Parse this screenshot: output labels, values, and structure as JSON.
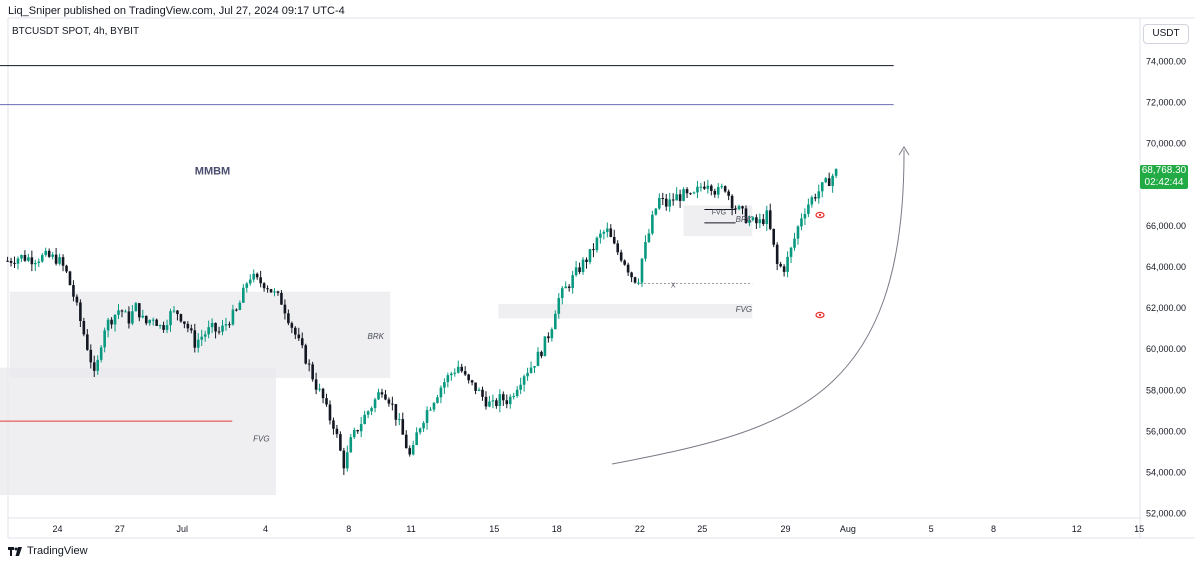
{
  "header": {
    "published_text": "Liq_Sniper published on TradingView.com, Jul 27, 2024 09:17 UTC-4",
    "symbol_text": "BTCUSDT SPOT, 4h, BYBIT",
    "currency_button": "USDT",
    "footer_brand": "TradingView"
  },
  "colors": {
    "up": "#089981",
    "down": "#131722",
    "zone": "#e9eaee",
    "last_price": "#22ab45",
    "red_line": "#e53935",
    "purple_line": "#6b6bb5",
    "black_line": "#131722"
  },
  "last_price": {
    "value": "68,768.30",
    "countdown": "02:42:44"
  },
  "chart_data": {
    "type": "candlestick",
    "title": "BTCUSDT SPOT, 4h, BYBIT",
    "ylim": [
      52000,
      75500
    ],
    "y_ticks": [
      "52,000.00",
      "54,000.00",
      "56,000.00",
      "58,000.00",
      "60,000.00",
      "62,000.00",
      "64,000.00",
      "66,000.00",
      "68,000.00",
      "70,000.00",
      "72,000.00",
      "74,000.00"
    ],
    "x_ticks": [
      {
        "label": "24",
        "day": 24
      },
      {
        "label": "27",
        "day": 27
      },
      {
        "label": "Jul",
        "day": 30
      },
      {
        "label": "4",
        "day": 34
      },
      {
        "label": "8",
        "day": 38
      },
      {
        "label": "11",
        "day": 41
      },
      {
        "label": "15",
        "day": 45
      },
      {
        "label": "18",
        "day": 48
      },
      {
        "label": "22",
        "day": 52
      },
      {
        "label": "25",
        "day": 55
      },
      {
        "label": "29",
        "day": 59
      },
      {
        "label": "Aug",
        "day": 62
      },
      {
        "label": "5",
        "day": 66
      },
      {
        "label": "8",
        "day": 69
      },
      {
        "label": "12",
        "day": 73
      },
      {
        "label": "15",
        "day": 76
      }
    ],
    "x_unit": "days since Jun 0, 2024 (Jun 24 = 24, Jul 1 = 31, Aug 1 = 62)",
    "close_path": [
      [
        21.6,
        64300
      ],
      [
        22.2,
        64500
      ],
      [
        22.8,
        64400
      ],
      [
        23.4,
        64500
      ],
      [
        24.0,
        64400
      ],
      [
        24.4,
        63800
      ],
      [
        24.8,
        62500
      ],
      [
        25.2,
        61000
      ],
      [
        25.6,
        59500
      ],
      [
        25.8,
        58500
      ],
      [
        26.2,
        61000
      ],
      [
        26.6,
        61500
      ],
      [
        27.0,
        62000
      ],
      [
        27.4,
        61400
      ],
      [
        27.8,
        62100
      ],
      [
        28.2,
        61200
      ],
      [
        28.6,
        61600
      ],
      [
        29.0,
        61000
      ],
      [
        29.4,
        61700
      ],
      [
        29.8,
        61800
      ],
      [
        30.2,
        61200
      ],
      [
        30.6,
        60300
      ],
      [
        31.0,
        60700
      ],
      [
        31.4,
        61000
      ],
      [
        31.8,
        60800
      ],
      [
        32.2,
        61400
      ],
      [
        32.6,
        61800
      ],
      [
        32.9,
        62600
      ],
      [
        33.2,
        63600
      ],
      [
        33.6,
        63300
      ],
      [
        34.0,
        63200
      ],
      [
        34.4,
        62700
      ],
      [
        34.8,
        62300
      ],
      [
        35.2,
        61300
      ],
      [
        35.6,
        60300
      ],
      [
        36.0,
        59400
      ],
      [
        36.4,
        58300
      ],
      [
        36.8,
        57500
      ],
      [
        37.0,
        56800
      ],
      [
        37.3,
        56300
      ],
      [
        37.6,
        55000
      ],
      [
        37.8,
        54300
      ],
      [
        38.1,
        55500
      ],
      [
        38.4,
        56100
      ],
      [
        38.8,
        56800
      ],
      [
        39.2,
        57400
      ],
      [
        39.6,
        58100
      ],
      [
        40.0,
        57500
      ],
      [
        40.4,
        56400
      ],
      [
        40.8,
        55200
      ],
      [
        41.0,
        54600
      ],
      [
        41.3,
        56000
      ],
      [
        41.7,
        56900
      ],
      [
        42.1,
        57600
      ],
      [
        42.5,
        58300
      ],
      [
        42.9,
        58800
      ],
      [
        43.3,
        59200
      ],
      [
        43.7,
        58400
      ],
      [
        44.1,
        58100
      ],
      [
        44.5,
        57600
      ],
      [
        44.9,
        57200
      ],
      [
        45.3,
        57600
      ],
      [
        45.7,
        57500
      ],
      [
        46.0,
        58100
      ],
      [
        46.4,
        58800
      ],
      [
        46.8,
        59200
      ],
      [
        47.2,
        59800
      ],
      [
        47.6,
        60700
      ],
      [
        47.8,
        61300
      ],
      [
        48.0,
        62300
      ],
      [
        48.4,
        62900
      ],
      [
        48.8,
        63500
      ],
      [
        49.2,
        64100
      ],
      [
        49.6,
        64600
      ],
      [
        50.0,
        65400
      ],
      [
        50.4,
        65800
      ],
      [
        50.8,
        64900
      ],
      [
        51.2,
        64400
      ],
      [
        51.6,
        63600
      ],
      [
        51.9,
        63300
      ],
      [
        52.1,
        64400
      ],
      [
        52.4,
        65500
      ],
      [
        52.6,
        66300
      ],
      [
        52.9,
        67300
      ],
      [
        53.3,
        67000
      ],
      [
        53.7,
        67400
      ],
      [
        54.1,
        67500
      ],
      [
        54.5,
        67300
      ],
      [
        54.9,
        67900
      ],
      [
        55.3,
        68200
      ],
      [
        55.7,
        67600
      ],
      [
        56.1,
        67900
      ],
      [
        56.5,
        67000
      ],
      [
        56.9,
        66600
      ],
      [
        57.3,
        66200
      ],
      [
        57.7,
        66100
      ],
      [
        58.1,
        66500
      ],
      [
        58.3,
        65600
      ],
      [
        58.6,
        64100
      ],
      [
        58.9,
        63900
      ],
      [
        59.2,
        64600
      ],
      [
        59.5,
        65600
      ],
      [
        59.8,
        66600
      ],
      [
        60.1,
        67100
      ],
      [
        60.4,
        67500
      ],
      [
        60.7,
        67800
      ],
      [
        61.0,
        68100
      ],
      [
        61.3,
        68500
      ],
      [
        61.45,
        68768
      ]
    ],
    "zones": [
      {
        "from_day": 21.7,
        "to_day": 40.0,
        "low": 58600,
        "high": 62800,
        "label": "BRK"
      },
      {
        "from_day": 20.9,
        "to_day": 34.5,
        "low": 52900,
        "high": 59100,
        "label": "FVG"
      },
      {
        "from_day": 45.2,
        "to_day": 57.4,
        "low": 61500,
        "high": 62200,
        "label": "FVG"
      },
      {
        "from_day": 54.1,
        "to_day": 57.4,
        "low": 65500,
        "high": 67000,
        "label": "BRK"
      }
    ],
    "levels": [
      {
        "price": 73800,
        "from_day": 20.9,
        "to_day": 64.2,
        "color": "#131722"
      },
      {
        "price": 71900,
        "from_day": 20.9,
        "to_day": 64.2,
        "color": "#6b6bb5"
      },
      {
        "price": 56500,
        "from_day": 20.9,
        "to_day": 32.4,
        "color": "#e53935"
      }
    ],
    "annotations": [
      {
        "text": "MMBM",
        "day": 24.0,
        "price": 68500
      },
      {
        "text": "FVG",
        "day": 55.8,
        "price": 66550
      },
      {
        "text": "X",
        "day": 53.6,
        "price": 63000
      }
    ]
  }
}
